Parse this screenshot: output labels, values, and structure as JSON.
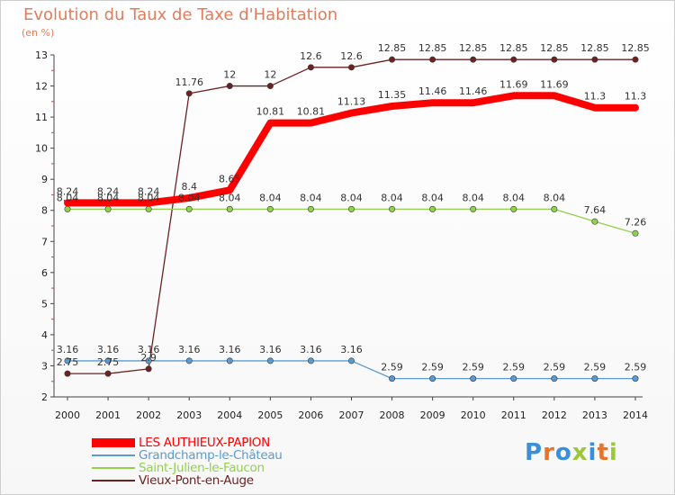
{
  "header": {
    "title": "Evolution du Taux de Taxe d'Habitation",
    "subtitle": "(en %)"
  },
  "logo": {
    "text": "Proxiti"
  },
  "chart_data": {
    "type": "line",
    "title": "Evolution du Taux de Taxe d'Habitation",
    "ylabel": "(en %)",
    "xlabel": "",
    "ylim": [
      2,
      13
    ],
    "yticks": [
      2,
      3,
      4,
      5,
      6,
      7,
      8,
      9,
      10,
      11,
      12,
      13
    ],
    "grid": false,
    "legend_position": "bottom-left",
    "x": [
      "2000",
      "2001",
      "2002",
      "2003",
      "2004",
      "2005",
      "2006",
      "2007",
      "2008",
      "2009",
      "2010",
      "2011",
      "2012",
      "2013",
      "2014"
    ],
    "series": [
      {
        "name": "Vieux-Pont-en-Auge",
        "color": "#6b2222",
        "width": 1.3,
        "marker": true,
        "values": [
          2.75,
          2.75,
          2.9,
          11.76,
          12,
          12,
          12.6,
          12.6,
          12.85,
          12.85,
          12.85,
          12.85,
          12.85,
          12.85,
          12.85
        ],
        "labels": [
          "2.75",
          "2.75",
          "2.9",
          "11.76",
          "12",
          "12",
          "12.6",
          "12.6",
          "12.85",
          "12.85",
          "12.85",
          "12.85",
          "12.85",
          "12.85",
          "12.85"
        ]
      },
      {
        "name": "Grandchamp-le-Château",
        "color": "#5b9bd1",
        "width": 1.3,
        "marker": true,
        "values": [
          3.16,
          3.16,
          3.16,
          3.16,
          3.16,
          3.16,
          3.16,
          3.16,
          2.59,
          2.59,
          2.59,
          2.59,
          2.59,
          2.59,
          2.59
        ],
        "labels": [
          "3.16",
          "3.16",
          "3.16",
          "3.16",
          "3.16",
          "3.16",
          "3.16",
          "3.16",
          "2.59",
          "2.59",
          "2.59",
          "2.59",
          "2.59",
          "2.59",
          "2.59"
        ]
      },
      {
        "name": "Saint-Julien-le-Faucon",
        "color": "#92d050",
        "width": 1.3,
        "marker": true,
        "values": [
          8.04,
          8.04,
          8.04,
          8.04,
          8.04,
          8.04,
          8.04,
          8.04,
          8.04,
          8.04,
          8.04,
          8.04,
          8.04,
          7.64,
          7.26
        ],
        "labels": [
          "8.04",
          "8.04",
          "8.04",
          "8.04",
          "8.04",
          "8.04",
          "8.04",
          "8.04",
          "8.04",
          "8.04",
          "8.04",
          "8.04",
          "8.04",
          "7.64",
          "7.26"
        ]
      },
      {
        "name": "LES AUTHIEUX-PAPION",
        "color": "#ff0000",
        "width": 8,
        "marker": false,
        "values": [
          8.24,
          8.24,
          8.24,
          8.4,
          8.65,
          10.81,
          10.81,
          11.13,
          11.35,
          11.46,
          11.46,
          11.69,
          11.69,
          11.3,
          11.3
        ],
        "labels": [
          "8.24",
          "8.24",
          "8.24",
          "8.4",
          "8.65",
          "10.81",
          "10.81",
          "11.13",
          "11.35",
          "11.46",
          "11.46",
          "11.69",
          "11.69",
          "11.3",
          "11.3"
        ]
      }
    ],
    "legend_order": [
      "LES AUTHIEUX-PAPION",
      "Grandchamp-le-Château",
      "Saint-Julien-le-Faucon",
      "Vieux-Pont-en-Auge"
    ]
  }
}
